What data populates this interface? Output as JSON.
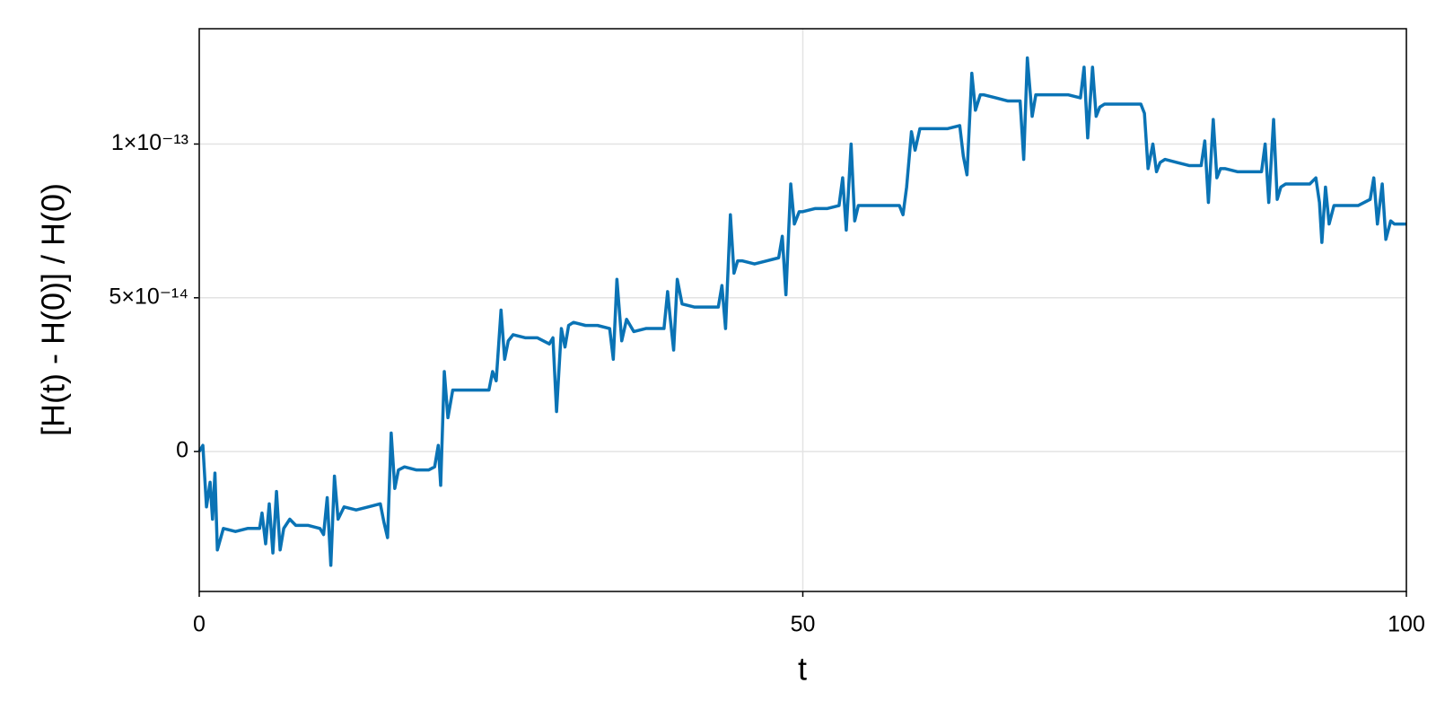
{
  "chart_data": {
    "type": "line",
    "xlabel": "t",
    "ylabel": "[H(t) - H(0)] / H(0)",
    "color": "#0a73b5",
    "grid": true,
    "xlim": [
      0,
      100
    ],
    "xticks": [
      0,
      50,
      100
    ],
    "ylim": [
      -4.55e-14,
      1.375e-13
    ],
    "yticks": [
      0,
      {
        "value": 5e-14,
        "label": "5×10⁻¹⁴"
      },
      {
        "value": 1e-13,
        "label": "1×10⁻¹³"
      }
    ],
    "x": [
      0,
      0.3,
      0.6,
      0.9,
      1.1,
      1.3,
      1.5,
      2,
      3,
      4,
      5,
      5.2,
      5.5,
      5.8,
      6.1,
      6.4,
      6.7,
      7,
      7.5,
      8,
      9,
      10,
      10.3,
      10.6,
      10.9,
      11.2,
      11.5,
      12,
      13,
      14,
      15,
      15.3,
      15.6,
      15.9,
      16.2,
      16.5,
      17,
      18,
      19,
      19.5,
      19.8,
      20,
      20.3,
      20.6,
      21,
      22,
      23,
      24,
      24.3,
      24.6,
      25,
      25.3,
      25.6,
      26,
      27,
      28,
      29,
      29.3,
      29.6,
      30,
      30.3,
      30.6,
      31,
      32,
      33,
      34,
      34.3,
      34.6,
      35,
      35.4,
      36,
      37,
      38,
      38.5,
      38.8,
      39,
      39.3,
      39.6,
      40,
      41,
      42,
      43,
      43.3,
      43.6,
      44,
      44.3,
      44.6,
      45,
      46,
      47,
      48,
      48.3,
      48.6,
      49,
      49.3,
      49.7,
      50,
      51,
      52,
      53,
      53.3,
      53.6,
      54,
      54.3,
      54.6,
      55,
      56,
      57,
      58,
      58.3,
      58.6,
      59,
      59.3,
      59.7,
      60,
      61,
      62,
      63,
      63.3,
      63.6,
      64,
      64.3,
      64.7,
      65,
      66,
      67,
      68,
      68.3,
      68.6,
      69,
      69.3,
      70,
      71,
      72,
      73,
      73.3,
      73.6,
      74,
      74.3,
      74.6,
      75,
      76,
      77,
      78,
      78.3,
      78.6,
      79,
      79.3,
      79.6,
      80,
      81,
      82,
      83,
      83.3,
      83.6,
      84,
      84.3,
      84.6,
      85,
      86,
      87,
      88,
      88.3,
      88.6,
      89,
      89.3,
      89.6,
      90,
      91,
      92,
      92.5,
      92.8,
      93,
      93.3,
      93.6,
      94,
      95,
      96,
      97,
      97.3,
      97.6,
      98,
      98.3,
      98.7,
      99,
      100
    ],
    "values": [
      0,
      2e-15,
      -1.8e-14,
      -1e-14,
      -2.2e-14,
      -7e-15,
      -3.2e-14,
      -2.5e-14,
      -2.6e-14,
      -2.5e-14,
      -2.5e-14,
      -2e-14,
      -3e-14,
      -1.7e-14,
      -3.3e-14,
      -1.3e-14,
      -3.2e-14,
      -2.5e-14,
      -2.2e-14,
      -2.4e-14,
      -2.4e-14,
      -2.5e-14,
      -2.7e-14,
      -1.5e-14,
      -3.7e-14,
      -8e-15,
      -2.2e-14,
      -1.8e-14,
      -1.9e-14,
      -1.8e-14,
      -1.7e-14,
      -2.3e-14,
      -2.8e-14,
      6e-15,
      -1.2e-14,
      -6e-15,
      -5e-15,
      -6e-15,
      -6e-15,
      -5e-15,
      2e-15,
      -1.1e-14,
      2.6e-14,
      1.1e-14,
      2e-14,
      2e-14,
      2e-14,
      2e-14,
      2.6e-14,
      2.3e-14,
      4.6e-14,
      3e-14,
      3.6e-14,
      3.8e-14,
      3.7e-14,
      3.7e-14,
      3.5e-14,
      3.7e-14,
      1.3e-14,
      4e-14,
      3.4e-14,
      4.1e-14,
      4.2e-14,
      4.1e-14,
      4.1e-14,
      4e-14,
      3e-14,
      5.6e-14,
      3.6e-14,
      4.3e-14,
      3.9e-14,
      4e-14,
      4e-14,
      4e-14,
      5.2e-14,
      4.4e-14,
      3.3e-14,
      5.6e-14,
      4.8e-14,
      4.7e-14,
      4.7e-14,
      4.7e-14,
      5.4e-14,
      4e-14,
      7.7e-14,
      5.8e-14,
      6.2e-14,
      6.2e-14,
      6.1e-14,
      6.2e-14,
      6.3e-14,
      7e-14,
      5.1e-14,
      8.7e-14,
      7.4e-14,
      7.8e-14,
      7.8e-14,
      7.9e-14,
      7.9e-14,
      8e-14,
      8.9e-14,
      7.2e-14,
      1e-13,
      7.5e-14,
      8e-14,
      8e-14,
      8e-14,
      8e-14,
      8e-14,
      7.7e-14,
      8.6e-14,
      1.04e-13,
      9.8e-14,
      1.05e-13,
      1.05e-13,
      1.05e-13,
      1.05e-13,
      1.06e-13,
      9.6e-14,
      9e-14,
      1.23e-13,
      1.11e-13,
      1.16e-13,
      1.16e-13,
      1.15e-13,
      1.14e-13,
      1.14e-13,
      9.5e-14,
      1.28e-13,
      1.09e-13,
      1.16e-13,
      1.16e-13,
      1.16e-13,
      1.16e-13,
      1.15e-13,
      1.25e-13,
      1.02e-13,
      1.25e-13,
      1.09e-13,
      1.12e-13,
      1.13e-13,
      1.13e-13,
      1.13e-13,
      1.13e-13,
      1.1e-13,
      9.2e-14,
      1e-13,
      9.1e-14,
      9.4e-14,
      9.5e-14,
      9.4e-14,
      9.3e-14,
      9.3e-14,
      1.01e-13,
      8.1e-14,
      1.08e-13,
      8.9e-14,
      9.2e-14,
      9.2e-14,
      9.1e-14,
      9.1e-14,
      9.1e-14,
      1e-13,
      8.1e-14,
      1.08e-13,
      8.2e-14,
      8.6e-14,
      8.7e-14,
      8.7e-14,
      8.7e-14,
      8.9e-14,
      8.1e-14,
      6.8e-14,
      8.6e-14,
      7.4e-14,
      8e-14,
      8e-14,
      8e-14,
      8.2e-14,
      8.9e-14,
      7.4e-14,
      8.7e-14,
      6.9e-14,
      7.5e-14,
      7.4e-14,
      7.4e-14
    ]
  }
}
